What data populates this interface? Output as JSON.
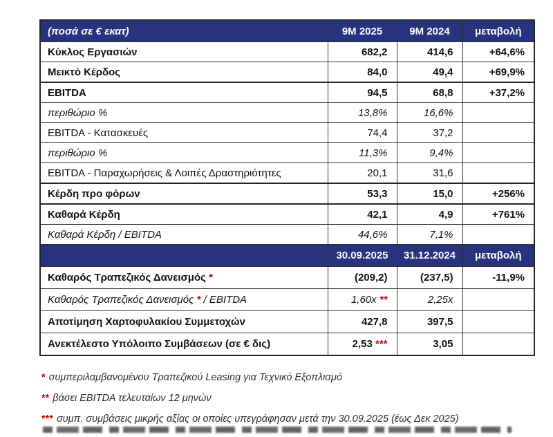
{
  "colors": {
    "navy": "#28327d",
    "header_text": "#ffffff",
    "border": "#2e2e2e",
    "text": "#121212",
    "red_accent": "#c00000",
    "footnote_text": "#2f2f2f"
  },
  "table": {
    "sections": [
      {
        "header": {
          "label": "(ποσά σε € εκατ)",
          "cols": [
            "9M 2025",
            "9M 2024",
            "μεταβολή"
          ]
        },
        "rows": [
          {
            "style": "bold",
            "thick": false,
            "label": [
              {
                "t": "Κύκλος Εργασιών"
              }
            ],
            "cells": [
              [
                {
                  "t": "682,2"
                }
              ],
              [
                {
                  "t": "414,6"
                }
              ],
              [
                {
                  "t": "+64,6%"
                }
              ]
            ]
          },
          {
            "style": "bold",
            "thick": false,
            "label": [
              {
                "t": "Μεικτό Κέρδος"
              }
            ],
            "cells": [
              [
                {
                  "t": "84,0"
                }
              ],
              [
                {
                  "t": "49,4"
                }
              ],
              [
                {
                  "t": "+69,9%"
                }
              ]
            ]
          },
          {
            "style": "bold",
            "thick": true,
            "label": [
              {
                "t": "EBITDA"
              }
            ],
            "cells": [
              [
                {
                  "t": "94,5"
                }
              ],
              [
                {
                  "t": "68,8"
                }
              ],
              [
                {
                  "t": "+37,2%"
                }
              ]
            ]
          },
          {
            "style": "ital",
            "thick": false,
            "label": [
              {
                "t": "περιθώριο %"
              }
            ],
            "cells": [
              [
                {
                  "t": "13,8%"
                }
              ],
              [
                {
                  "t": "16,6%"
                }
              ],
              []
            ]
          },
          {
            "style": "reg",
            "thick": false,
            "label": [
              {
                "t": "EBITDA - Κατασκευές"
              }
            ],
            "cells": [
              [
                {
                  "t": "74,4"
                }
              ],
              [
                {
                  "t": "37,2"
                }
              ],
              []
            ]
          },
          {
            "style": "ital",
            "thick": false,
            "label": [
              {
                "t": "περιθώριο %"
              }
            ],
            "cells": [
              [
                {
                  "t": "11,3%"
                }
              ],
              [
                {
                  "t": "9,4%"
                }
              ],
              []
            ]
          },
          {
            "style": "reg",
            "thick": false,
            "label": [
              {
                "t": "EBITDA - Παραχωρήσεις & Λοιπές Δραστηριότητες"
              }
            ],
            "cells": [
              [
                {
                  "t": "20,1"
                }
              ],
              [
                {
                  "t": "31,6"
                }
              ],
              []
            ]
          },
          {
            "style": "bold",
            "thick": true,
            "label": [
              {
                "t": "Κέρδη προ φόρων"
              }
            ],
            "cells": [
              [
                {
                  "t": "53,3"
                }
              ],
              [
                {
                  "t": "15,0"
                }
              ],
              [
                {
                  "t": "+256%"
                }
              ]
            ]
          },
          {
            "style": "bold",
            "thick": true,
            "label": [
              {
                "t": "Καθαρά Κέρδη"
              }
            ],
            "cells": [
              [
                {
                  "t": "42,1"
                }
              ],
              [
                {
                  "t": "4,9"
                }
              ],
              [
                {
                  "t": "+761%"
                }
              ]
            ]
          },
          {
            "style": "ital",
            "thick": false,
            "label": [
              {
                "t": "Καθαρά Κέρδη / EBITDA"
              }
            ],
            "cells": [
              [
                {
                  "t": "44,6%"
                }
              ],
              [
                {
                  "t": "7,1%"
                }
              ],
              []
            ]
          }
        ]
      },
      {
        "header": {
          "label": "",
          "cols": [
            "30.09.2025",
            "31.12.2024",
            "μεταβολή"
          ]
        },
        "rows": [
          {
            "style": "bold",
            "thick": false,
            "label": [
              {
                "t": "Καθαρός Τραπεζικός Δανεισμός "
              },
              {
                "t": "*",
                "red": true
              }
            ],
            "cells": [
              [
                {
                  "t": "(209,2)"
                }
              ],
              [
                {
                  "t": "(237,5)"
                }
              ],
              [
                {
                  "t": "-11,9%"
                }
              ]
            ]
          },
          {
            "style": "ital",
            "thick": false,
            "label": [
              {
                "t": "Καθαρός Τραπεζικός Δανεισμός "
              },
              {
                "t": "*",
                "red": true
              },
              {
                "t": " / EBITDA"
              }
            ],
            "cells": [
              [
                {
                  "t": "1,60x "
                },
                {
                  "t": "**",
                  "red": true
                }
              ],
              [
                {
                  "t": "2,25x"
                }
              ],
              []
            ]
          },
          {
            "style": "bold",
            "thick": false,
            "label": [
              {
                "t": "Αποτίμηση Χαρτοφυλακίου Συμμετοχών"
              }
            ],
            "cells": [
              [
                {
                  "t": "427,8"
                }
              ],
              [
                {
                  "t": "397,5"
                }
              ],
              []
            ]
          },
          {
            "style": "bold",
            "thick": false,
            "label": [
              {
                "t": "Ανεκτέλεστο Υπόλοιπο Συμβάσεων (σε € δις)"
              }
            ],
            "cells": [
              [
                {
                  "t": "2,53 "
                },
                {
                  "t": "***",
                  "red": true
                }
              ],
              [
                {
                  "t": "3,05"
                }
              ],
              []
            ]
          }
        ]
      }
    ]
  },
  "footnotes": [
    {
      "stars": "*",
      "text": "συμπεριλαμβανομένου Τραπεζικού Leasing για Τεχνικό Εξοπλισμό"
    },
    {
      "stars": "**",
      "text": "βάσει EBITDA τελευταίων 12 μηνών"
    },
    {
      "stars": "***",
      "text": "συμπ. συμβάσεις μικρής αξίας οι οποίες υπεγράφησαν μετά την 30.09.2025 (έως Δεκ 2025)"
    }
  ]
}
